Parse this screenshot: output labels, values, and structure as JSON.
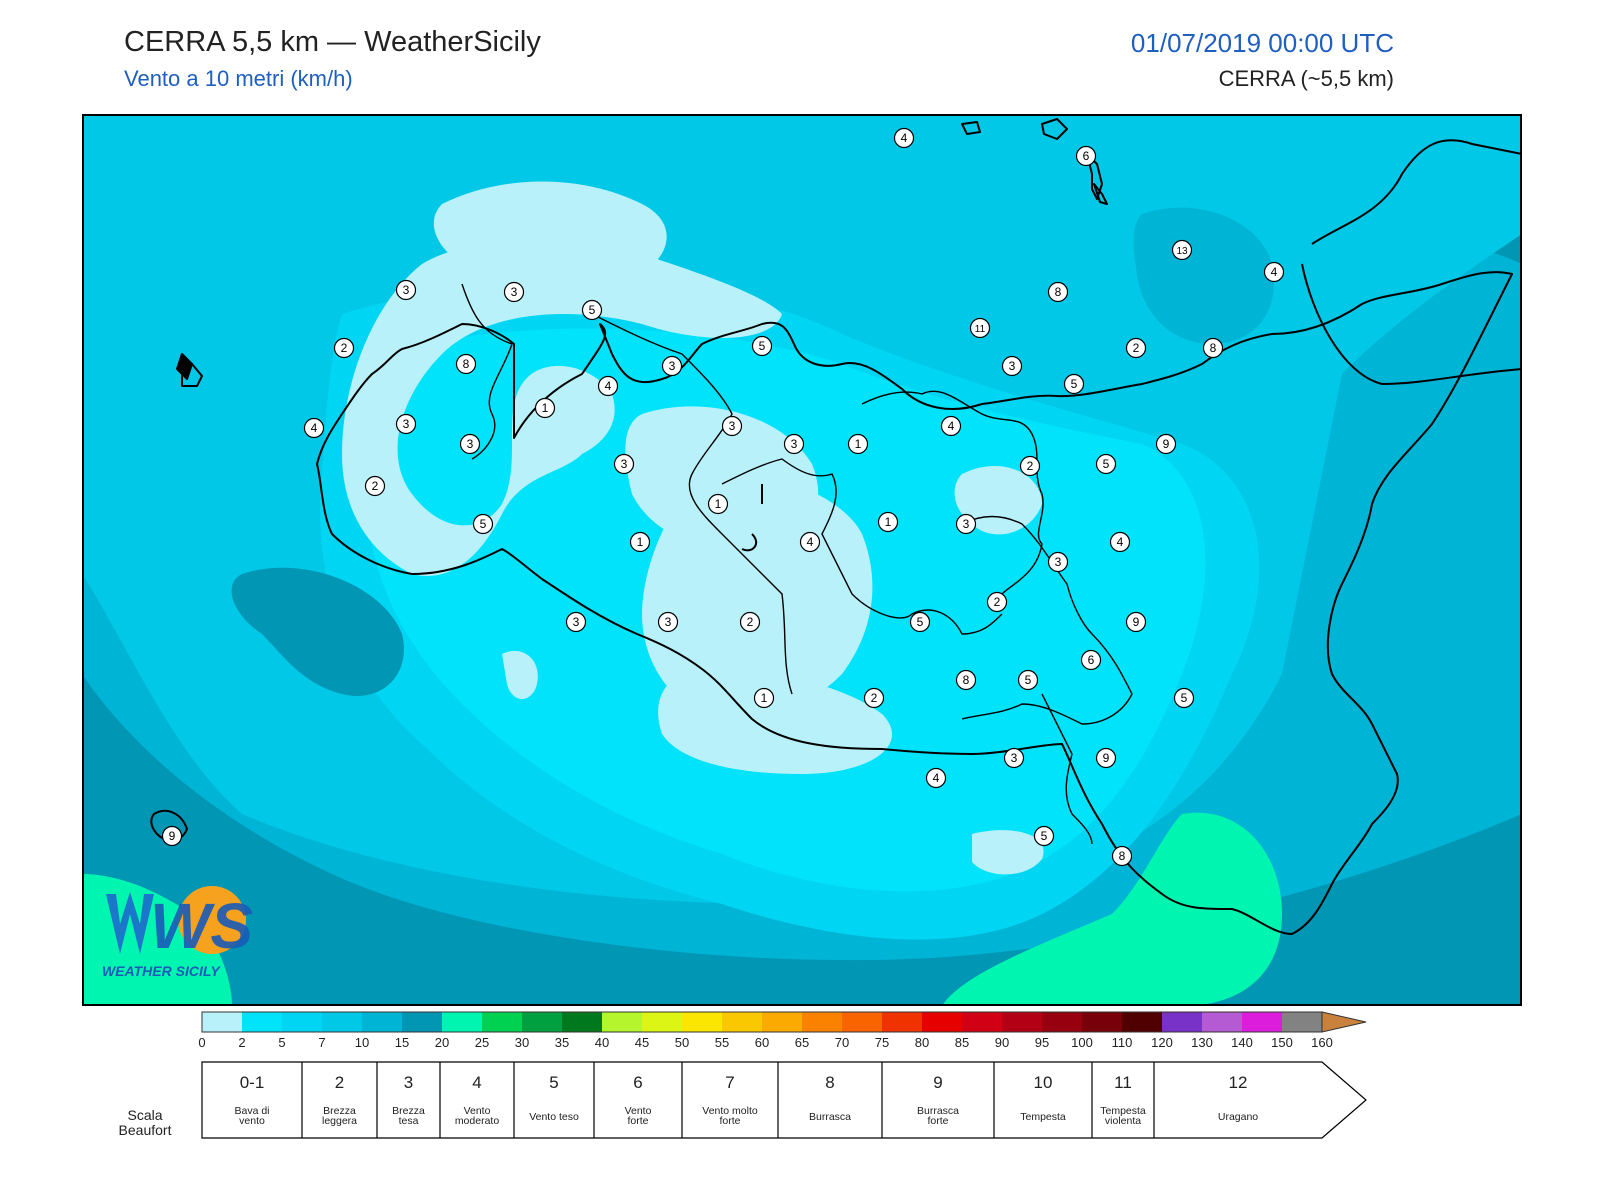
{
  "header": {
    "title": "CERRA 5,5 km — WeatherSicily",
    "subtitle": "Vento a 10 metri (km/h)",
    "datetime": "01/07/2019 00:00 UTC",
    "model": "CERRA (~5,5 km)"
  },
  "logo": {
    "letters": "WS",
    "text": "WEATHER SICILY"
  },
  "colors": {
    "sea_light": "#00c8e6",
    "sea_mid": "#00b4d6",
    "sea_dark": "#0096b4",
    "calm": "#b9f1fb",
    "land_cyan": "#00e3fa",
    "green_band": "#00f5b0",
    "coastline": "#000000"
  },
  "station_values": [
    {
      "name": "n01",
      "value": "4"
    },
    {
      "name": "n02",
      "value": "6"
    },
    {
      "name": "n03",
      "value": "13"
    },
    {
      "name": "n04",
      "value": "4"
    },
    {
      "name": "n05",
      "value": "3"
    },
    {
      "name": "n06",
      "value": "3"
    },
    {
      "name": "n07",
      "value": "5"
    },
    {
      "name": "n08",
      "value": "8"
    },
    {
      "name": "n09",
      "value": "11"
    },
    {
      "name": "n10",
      "value": "2"
    },
    {
      "name": "n11",
      "value": "2"
    },
    {
      "name": "n12",
      "value": "5"
    },
    {
      "name": "n13",
      "value": "8"
    },
    {
      "name": "n14",
      "value": "3"
    },
    {
      "name": "n15",
      "value": "4"
    },
    {
      "name": "n16",
      "value": "3"
    },
    {
      "name": "n17",
      "value": "8"
    },
    {
      "name": "n18",
      "value": "3"
    },
    {
      "name": "n19",
      "value": "5"
    },
    {
      "name": "n20",
      "value": "1"
    },
    {
      "name": "n21",
      "value": "4"
    },
    {
      "name": "n22",
      "value": "3"
    },
    {
      "name": "n23",
      "value": "3"
    },
    {
      "name": "n24",
      "value": "1"
    },
    {
      "name": "n25",
      "value": "4"
    },
    {
      "name": "n26",
      "value": "9"
    },
    {
      "name": "n27",
      "value": "3"
    },
    {
      "name": "n28",
      "value": "3"
    },
    {
      "name": "n29",
      "value": "5"
    },
    {
      "name": "n30",
      "value": "2"
    },
    {
      "name": "n31",
      "value": "1"
    },
    {
      "name": "n32",
      "value": "2"
    },
    {
      "name": "n33",
      "value": "5"
    },
    {
      "name": "n34",
      "value": "1"
    },
    {
      "name": "n35",
      "value": "3"
    },
    {
      "name": "n36",
      "value": "1"
    },
    {
      "name": "n37",
      "value": "4"
    },
    {
      "name": "n38",
      "value": "4"
    },
    {
      "name": "n39",
      "value": "3"
    },
    {
      "name": "n40",
      "value": "3"
    },
    {
      "name": "n41",
      "value": "2"
    },
    {
      "name": "n42",
      "value": "9"
    },
    {
      "name": "n43",
      "value": "2"
    },
    {
      "name": "n44",
      "value": "5"
    },
    {
      "name": "n45",
      "value": "6"
    },
    {
      "name": "n46",
      "value": "3"
    },
    {
      "name": "n47",
      "value": "8"
    },
    {
      "name": "n48",
      "value": "5"
    },
    {
      "name": "n49",
      "value": "5"
    },
    {
      "name": "n50",
      "value": "1"
    },
    {
      "name": "n51",
      "value": "2"
    },
    {
      "name": "n52",
      "value": "3"
    },
    {
      "name": "n53",
      "value": "9"
    },
    {
      "name": "n54",
      "value": "4"
    },
    {
      "name": "n55",
      "value": "5"
    },
    {
      "name": "n56",
      "value": "8"
    },
    {
      "name": "n57",
      "value": "9"
    }
  ],
  "colorbar": {
    "ticks": [
      "0",
      "2",
      "5",
      "7",
      "10",
      "15",
      "20",
      "25",
      "30",
      "35",
      "40",
      "45",
      "50",
      "55",
      "60",
      "65",
      "70",
      "75",
      "80",
      "85",
      "90",
      "95",
      "100",
      "110",
      "120",
      "130",
      "140",
      "150",
      "160"
    ],
    "colors": [
      "#b9f1fb",
      "#00e3fa",
      "#00d6f3",
      "#00c8e6",
      "#00b4d6",
      "#0096b4",
      "#00f5b0",
      "#00d150",
      "#00a040",
      "#00781e",
      "#b4f52d",
      "#dcf514",
      "#fae600",
      "#fac800",
      "#faaa00",
      "#fa8200",
      "#fa6400",
      "#f03200",
      "#e60000",
      "#d20014",
      "#b40014",
      "#96000f",
      "#78000a",
      "#500000",
      "#7832c8",
      "#b45ad2",
      "#dc1edc",
      "#828282",
      "#5a5a5a",
      "#000000",
      "#824628",
      "#c8823c"
    ]
  },
  "beaufort": {
    "label": "Scala Beaufort",
    "classes": [
      {
        "num": "0-1",
        "desc": "Bava di vento"
      },
      {
        "num": "2",
        "desc": "Brezza leggera"
      },
      {
        "num": "3",
        "desc": "Brezza tesa"
      },
      {
        "num": "4",
        "desc": "Vento moderato"
      },
      {
        "num": "5",
        "desc": "Vento teso"
      },
      {
        "num": "6",
        "desc": "Vento forte"
      },
      {
        "num": "7",
        "desc": "Vento molto forte"
      },
      {
        "num": "8",
        "desc": "Burrasca"
      },
      {
        "num": "9",
        "desc": "Burrasca forte"
      },
      {
        "num": "10",
        "desc": "Tempesta"
      },
      {
        "num": "11",
        "desc": "Tempesta violenta"
      },
      {
        "num": "12",
        "desc": "Uragano"
      }
    ]
  }
}
